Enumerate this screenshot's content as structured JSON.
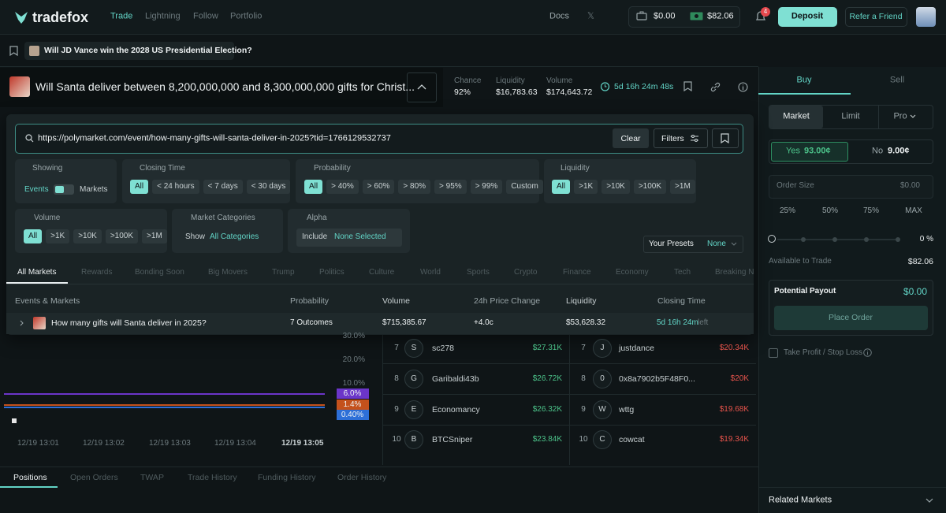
{
  "nav": {
    "brand": "tradefox",
    "links": [
      "Trade",
      "Lightning",
      "Follow",
      "Portfolio"
    ],
    "docs": "Docs",
    "cash": "$0.00",
    "wallet": "$82.06",
    "notifications": "4",
    "deposit": "Deposit",
    "refer": "Refer a Friend"
  },
  "breadcrumb": "Will JD Vance win the 2028 US Presidential Election?",
  "market": {
    "title": "Will Santa deliver between 8,200,000,000 and 8,300,000,000 gifts for Christ...",
    "stats": [
      {
        "label": "Chance",
        "value": "92%"
      },
      {
        "label": "Liquidity",
        "value": "$16,783.63"
      },
      {
        "label": "Volume",
        "value": "$174,643.72"
      }
    ],
    "countdown": "5d 16h 24m 48s"
  },
  "search": {
    "url": "https://polymarket.com/event/how-many-gifts-will-santa-deliver-in-2025?tid=1766129532737",
    "clear": "Clear",
    "filters": "Filters"
  },
  "filters": {
    "showing": {
      "label": "Showing",
      "options": [
        "Events",
        "Markets"
      ]
    },
    "closing_time": {
      "label": "Closing Time",
      "options": [
        "All",
        "< 24 hours",
        "< 7 days",
        "< 30 days"
      ]
    },
    "probability": {
      "label": "Probability",
      "options": [
        "All",
        "> 40%",
        "> 60%",
        "> 80%",
        "> 95%",
        "> 99%",
        "Custom"
      ]
    },
    "liquidity": {
      "label": "Liquidity",
      "options": [
        "All",
        ">1K",
        ">10K",
        ">100K",
        ">1M"
      ]
    },
    "volume": {
      "label": "Volume",
      "options": [
        "All",
        ">1K",
        ">10K",
        ">100K",
        ">1M"
      ]
    },
    "categories": {
      "label": "Market Categories",
      "prefix": "Show",
      "value": "All Categories"
    },
    "alpha": {
      "label": "Alpha",
      "prefix": "Include",
      "value": "None Selected"
    },
    "presets": {
      "label": "Your Presets",
      "value": "None"
    }
  },
  "tabs": [
    "All Markets",
    "Rewards",
    "Bonding Soon",
    "Big Movers",
    "Trump",
    "Politics",
    "Culture",
    "World",
    "Sports",
    "Crypto",
    "Finance",
    "Economy",
    "Tech",
    "Breaking N"
  ],
  "table": {
    "headers": [
      "Events & Markets",
      "Probability",
      "Volume",
      "24h Price Change",
      "Liquidity",
      "Closing Time"
    ],
    "row": {
      "event": "How many gifts will Santa deliver in 2025?",
      "probability": "7 Outcomes",
      "volume": "$715,385.67",
      "change": "+4.0c",
      "liquidity": "$53,628.32",
      "closing": "5d 16h 24m",
      "closing_suffix": "left"
    }
  },
  "chart": {
    "yticks": [
      "30.0%",
      "20.0%",
      "10.0%"
    ],
    "tags": [
      {
        "label": "6.0%",
        "color": "#6b35c9"
      },
      {
        "label": "1.4%",
        "color": "#c4511c"
      },
      {
        "label": "0.40%",
        "color": "#2d6fd8"
      }
    ],
    "xticks": [
      "12/19 13:01",
      "12/19 13:02",
      "12/19 13:03",
      "12/19 13:04",
      "12/19 13:05"
    ]
  },
  "leaderboard": {
    "left": [
      {
        "rank": "7",
        "initial": "S",
        "name": "sc278",
        "amount": "$27.31K"
      },
      {
        "rank": "8",
        "initial": "G",
        "name": "Garibaldi43b",
        "amount": "$26.72K"
      },
      {
        "rank": "9",
        "initial": "E",
        "name": "Economancy",
        "amount": "$26.32K"
      },
      {
        "rank": "10",
        "initial": "B",
        "name": "BTCSniper",
        "amount": "$23.84K"
      }
    ],
    "right": [
      {
        "rank": "7",
        "initial": "J",
        "name": "justdance",
        "amount": "$20.34K"
      },
      {
        "rank": "8",
        "initial": "0",
        "name": "0x8a7902b5F48F0...",
        "amount": "$20K"
      },
      {
        "rank": "9",
        "initial": "W",
        "name": "wttg",
        "amount": "$19.68K"
      },
      {
        "rank": "10",
        "initial": "C",
        "name": "cowcat",
        "amount": "$19.34K"
      }
    ]
  },
  "bottom_tabs": [
    "Positions",
    "Open Orders",
    "TWAP",
    "Trade History",
    "Funding History",
    "Order History"
  ],
  "order": {
    "sides": [
      "Buy",
      "Sell"
    ],
    "types": [
      "Market",
      "Limit",
      "Pro"
    ],
    "yes": {
      "label": "Yes",
      "price": "93.00¢"
    },
    "no": {
      "label": "No",
      "price": "9.00¢"
    },
    "order_size": {
      "label": "Order Size",
      "value": "$0.00"
    },
    "quick": [
      "25%",
      "50%",
      "75%",
      "MAX"
    ],
    "slider_value": "0 %",
    "available": {
      "label": "Available to Trade",
      "value": "$82.06"
    },
    "payout": {
      "label": "Potential Payout",
      "value": "$0.00"
    },
    "place": "Place Order",
    "tpsl": "Take Profit / Stop Loss",
    "related": "Related Markets"
  }
}
